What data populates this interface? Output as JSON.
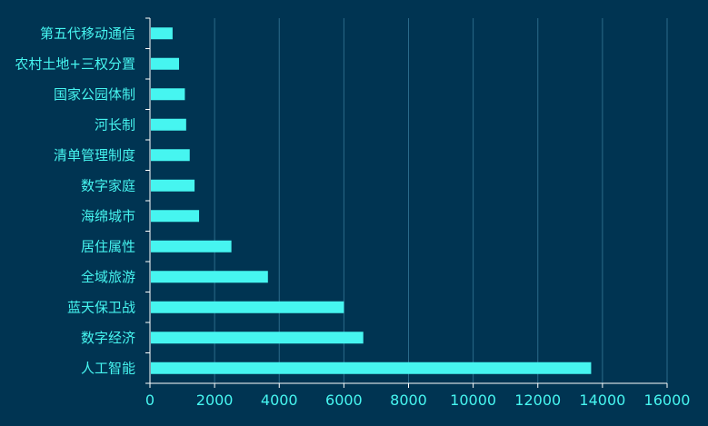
{
  "chart_data": {
    "type": "bar",
    "orientation": "horizontal",
    "categories": [
      "人工智能",
      "数字经济",
      "蓝天保卫战",
      "全域旅游",
      "居住属性",
      "海绵城市",
      "数字家庭",
      "清单管理制度",
      "河长制",
      "国家公园体制",
      "农村土地+三权分置",
      "第五代移动通信"
    ],
    "values": [
      13650,
      6600,
      6000,
      3650,
      2520,
      1520,
      1380,
      1230,
      1120,
      1080,
      900,
      700
    ],
    "xticks": [
      0,
      2000,
      4000,
      6000,
      8000,
      10000,
      12000,
      14000,
      16000
    ],
    "xlim": [
      0,
      16000
    ],
    "grid": true,
    "bar_color": "#46f5f0",
    "background_color": "#003452",
    "text_color": "#46f5f0"
  }
}
